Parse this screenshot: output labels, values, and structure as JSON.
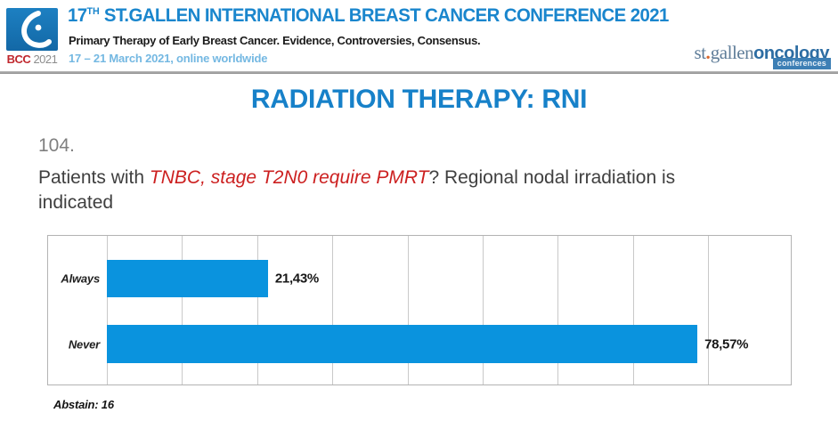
{
  "header": {
    "logo_badge": {
      "org": "BCC",
      "year": "2021"
    },
    "title_num": "17",
    "title_sup": "TH",
    "title_rest": " ST.GALLEN INTERNATIONAL BREAST CANCER CONFERENCE 2021",
    "subtitle": "Primary Therapy of Early Breast Cancer. Evidence, Controversies, Consensus.",
    "dates": "17 – 21 March 2021, online worldwide",
    "brand": {
      "part1": "st",
      "dot": ".",
      "part2": "gallen",
      "part3": "oncology",
      "badge": "conferences"
    }
  },
  "slide": {
    "title": "RADIATION THERAPY: RNI",
    "question_number": "104.",
    "question_lead": "Patients with ",
    "question_highlight": "TNBC, stage T2N0 require PMRT",
    "question_tail": "? Regional nodal irradiation is indicated",
    "abstain_label": "Abstain: 16"
  },
  "chart_data": {
    "type": "bar",
    "orientation": "horizontal",
    "title": "",
    "categories": [
      "Always",
      "Never"
    ],
    "values": [
      21.43,
      78.57
    ],
    "value_labels": [
      "21,43%",
      "78,57%"
    ],
    "abstain_count": 16,
    "xlim": [
      0,
      91
    ],
    "gridline_interval": 10,
    "grid": true,
    "bar_color": "#0a93de",
    "border_color": "#b3b3b3"
  }
}
